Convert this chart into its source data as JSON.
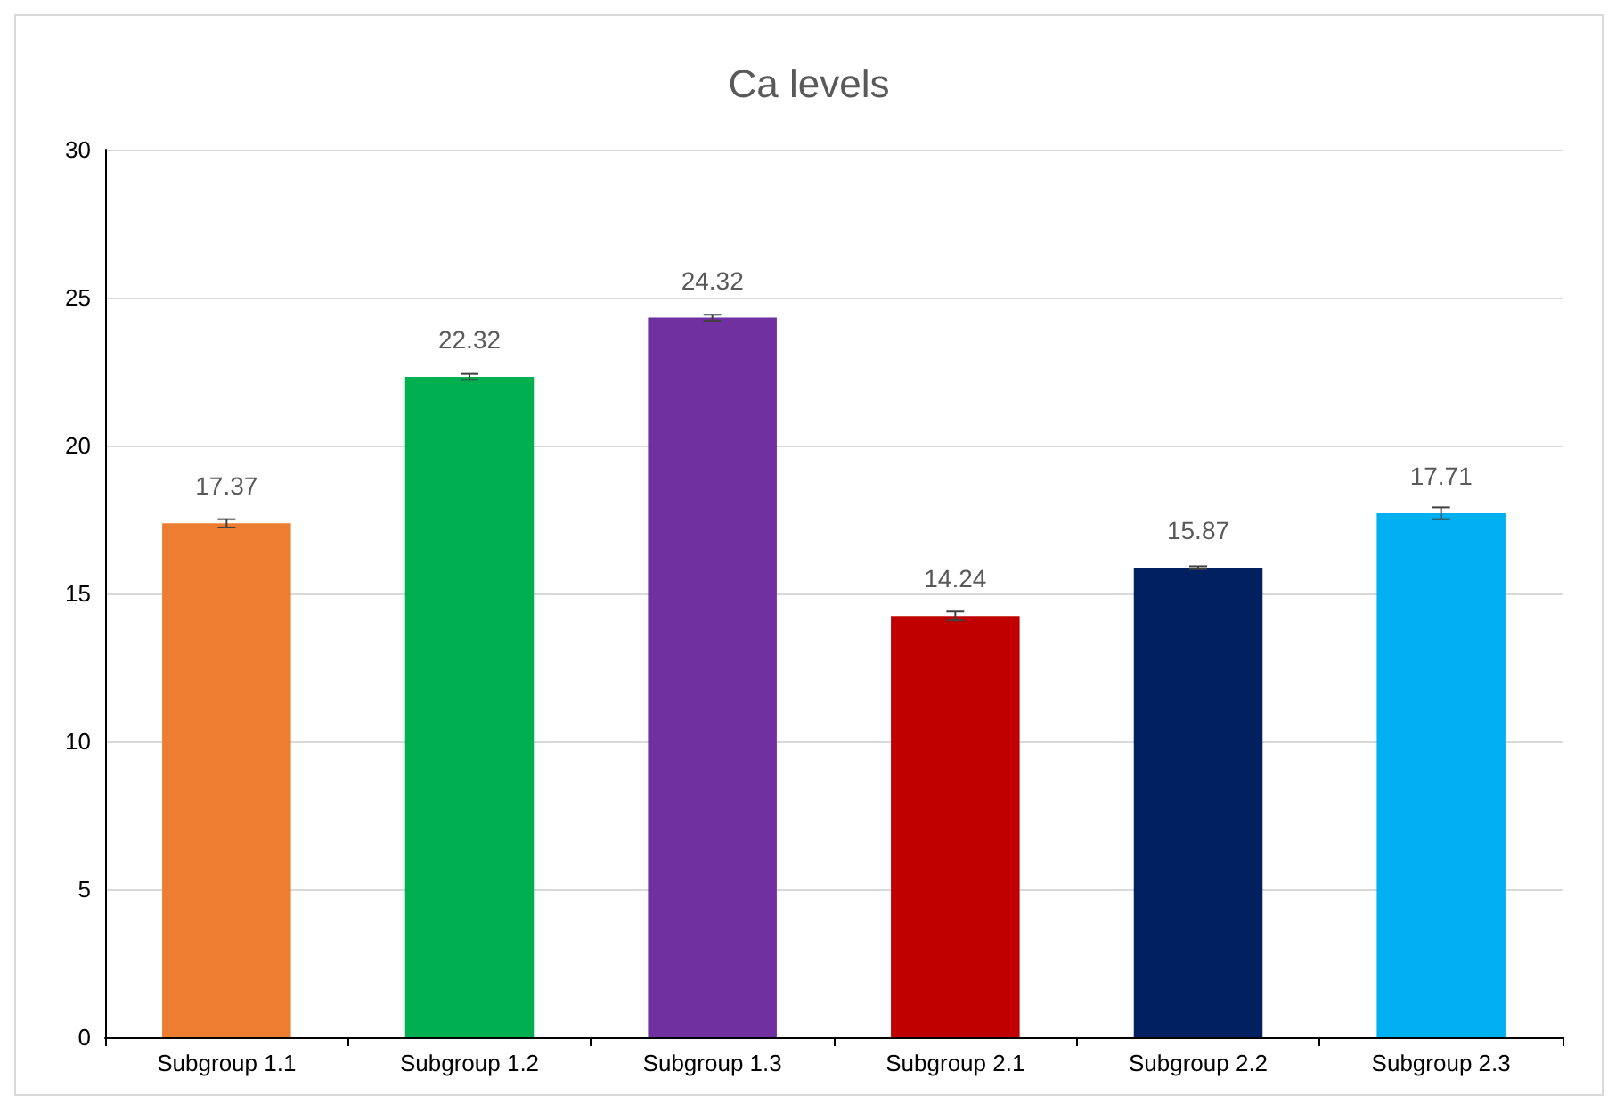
{
  "chart_data": {
    "type": "bar",
    "title": "Ca levels",
    "categories": [
      "Subgroup 1.1",
      "Subgroup 1.2",
      "Subgroup 1.3",
      "Subgroup 2.1",
      "Subgroup 2.2",
      "Subgroup 2.3"
    ],
    "values": [
      17.37,
      22.32,
      24.32,
      14.24,
      15.87,
      17.71
    ],
    "colors": [
      "#ed7d31",
      "#00b050",
      "#7030a0",
      "#c00000",
      "#002060",
      "#00b0f0"
    ],
    "errors": [
      0.14,
      0.1,
      0.1,
      0.15,
      0.05,
      0.2
    ],
    "data_labels": true,
    "ylim": [
      0,
      30
    ],
    "yticks": [
      0,
      5,
      10,
      15,
      20,
      25,
      30
    ],
    "grid": "y"
  }
}
